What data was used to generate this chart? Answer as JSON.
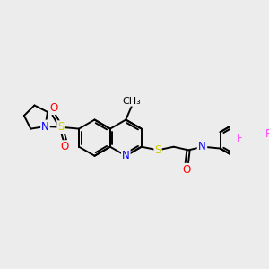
{
  "bg_color": "#ececec",
  "atom_colors": {
    "N": "#0000ff",
    "S": "#cccc00",
    "O": "#ff0000",
    "F": "#ff44ff",
    "H": "#777777",
    "C": "#000000"
  },
  "lw": 1.4,
  "fs": 8.5
}
